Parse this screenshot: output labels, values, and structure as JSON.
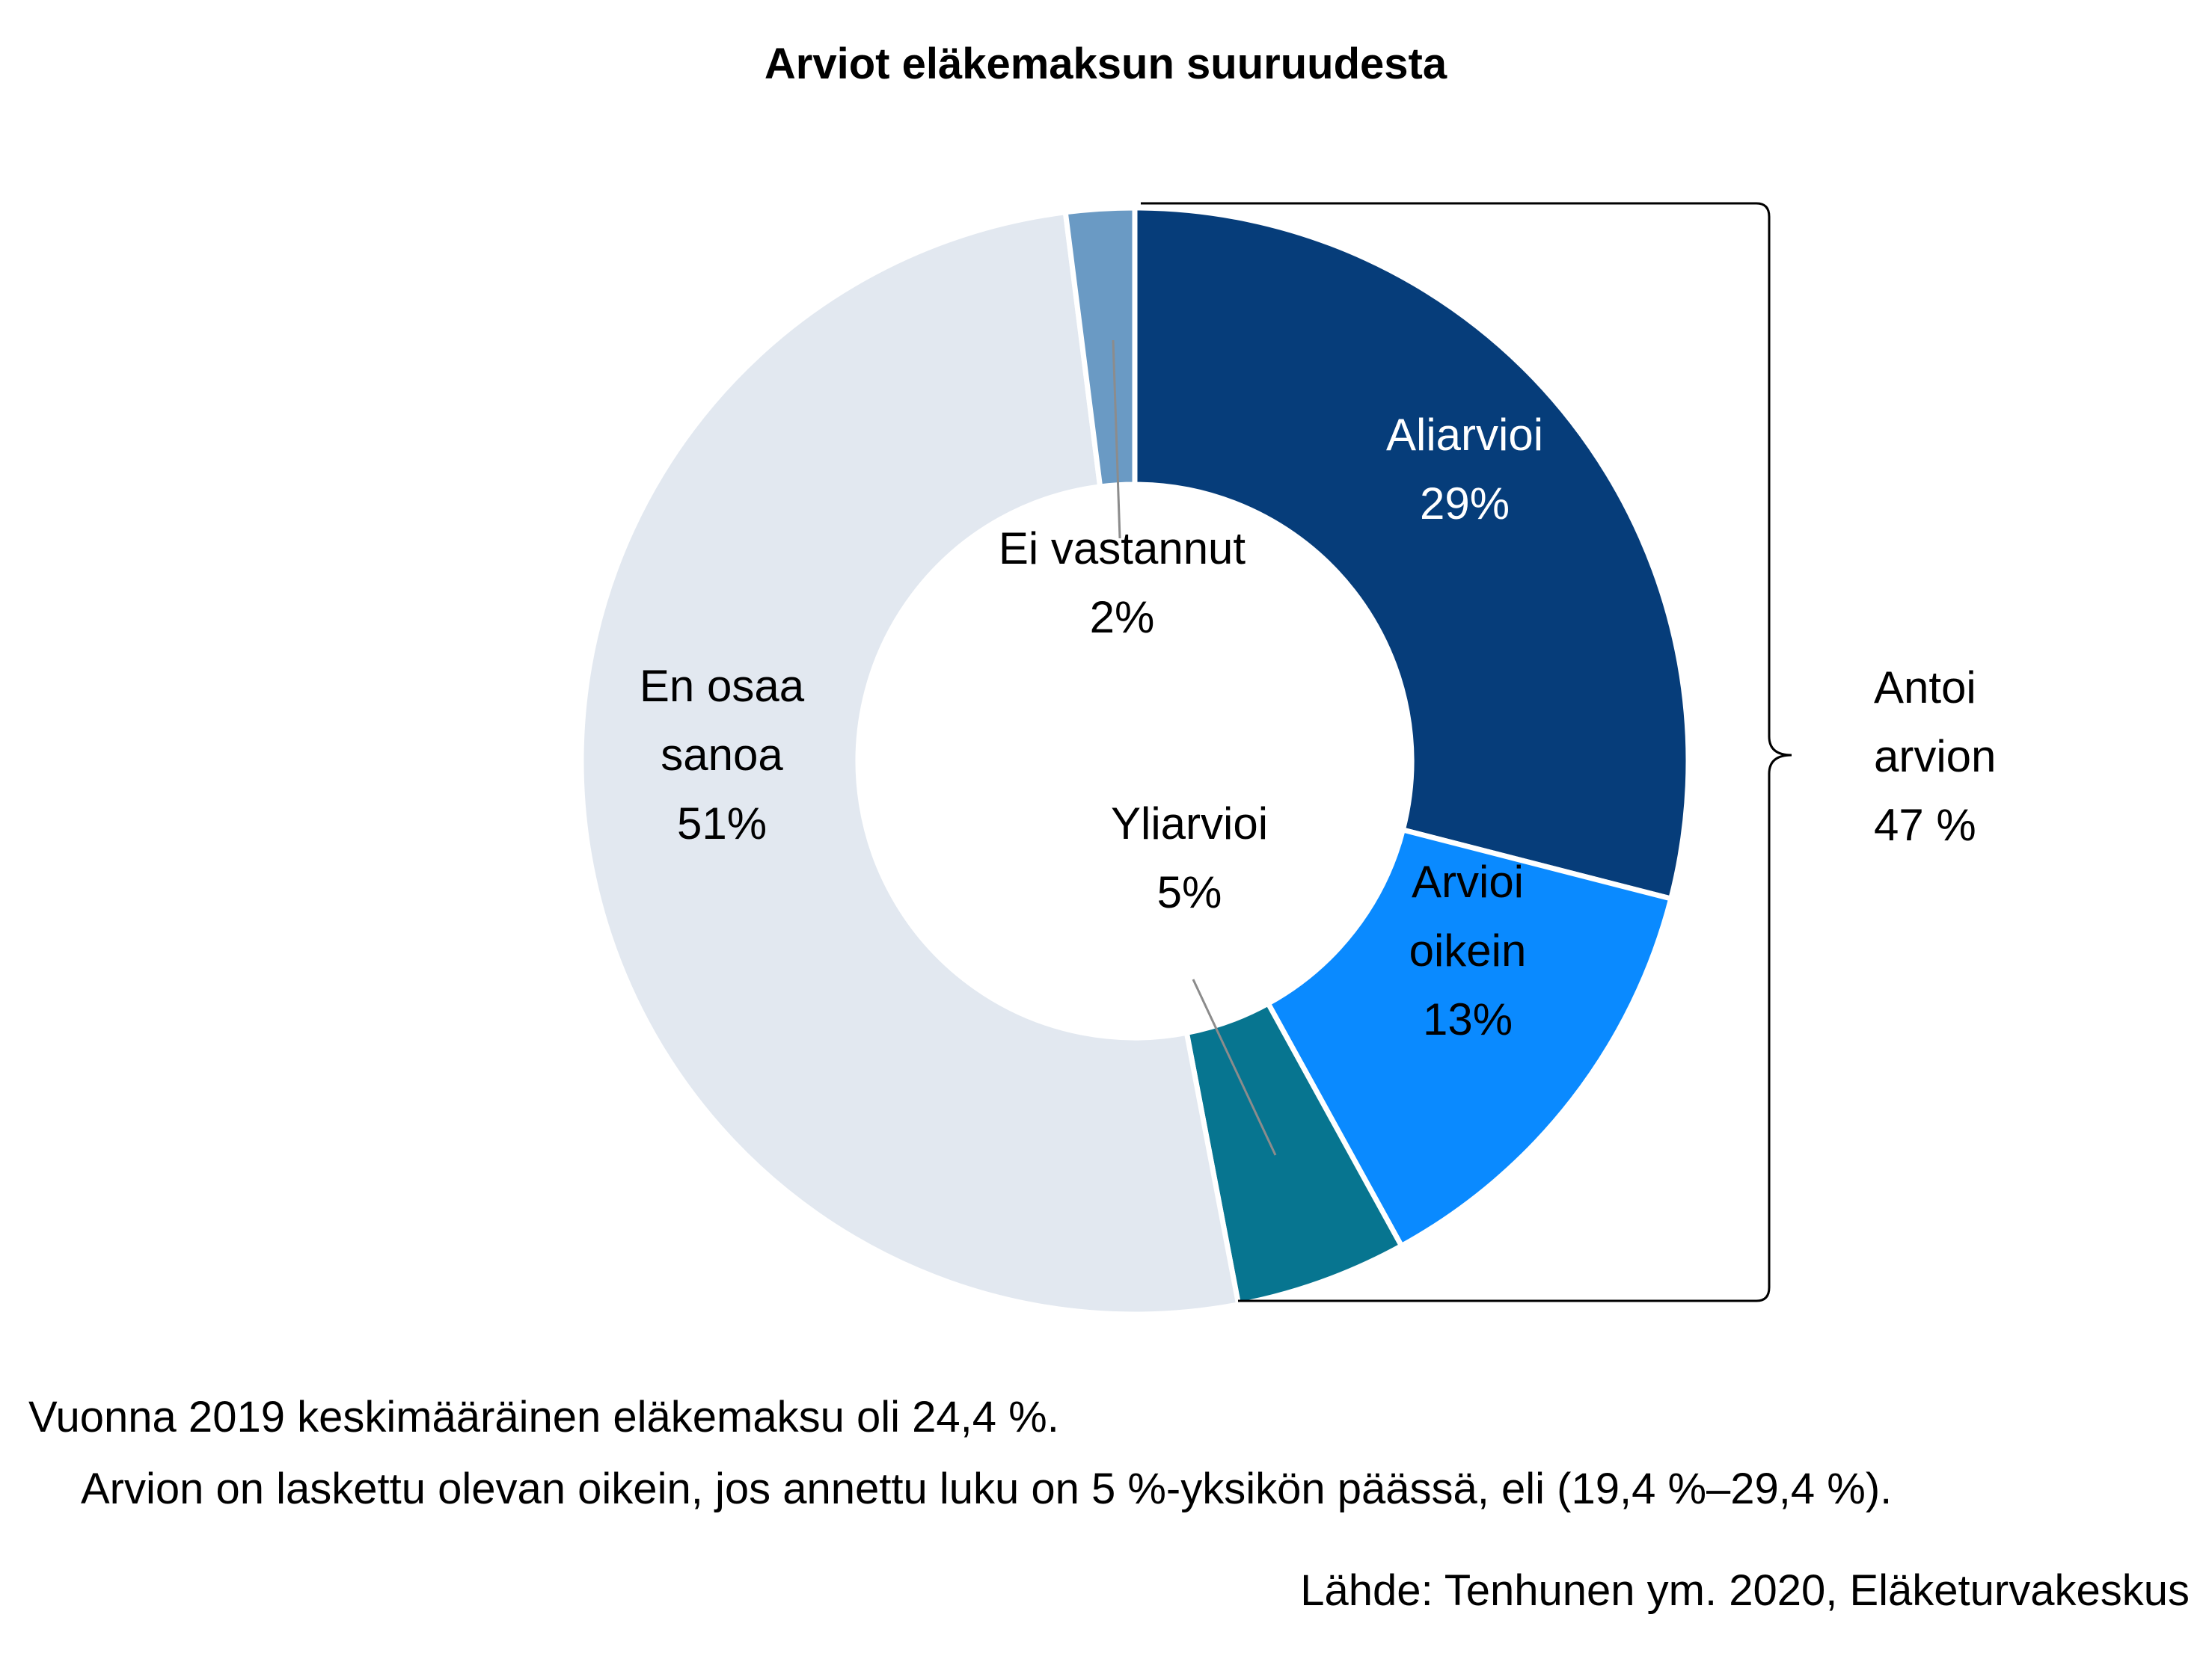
{
  "chart_data": {
    "type": "pie",
    "title": "Arviot eläkemaksun suuruudesta",
    "slices": [
      {
        "label_lines": [
          "Aliarvioi",
          "29%"
        ],
        "value": 29,
        "color": "#063d7a",
        "label_color": "#ffffff"
      },
      {
        "label_lines": [
          "Arvioi",
          "oikein",
          "13%"
        ],
        "value": 13,
        "color": "#0a8aff",
        "label_color": "#000000"
      },
      {
        "label_lines": [
          "Yliarvioi",
          "5%"
        ],
        "value": 5,
        "color": "#077590",
        "label_color": "#000000"
      },
      {
        "label_lines": [
          "En osaa",
          "sanoa",
          "51%"
        ],
        "value": 51,
        "color": "#e2e8f0",
        "label_color": "#000000"
      },
      {
        "label_lines": [
          "Ei vastannut",
          "2%"
        ],
        "value": 2,
        "color": "#6a9ac4",
        "label_color": "#000000"
      }
    ],
    "bracket_label_lines": [
      "Antoi",
      "arvion",
      "47 %"
    ]
  },
  "notes": {
    "line1": "Vuonna 2019 keskimääräinen eläkemaksu oli 24,4 %.",
    "line2": "Arvion on laskettu olevan oikein, jos annettu luku on 5 %-yksikön päässä, eli (19,4 %–29,4 %).",
    "source": "Lähde: Tenhunen ym. 2020, Eläketurvakeskus"
  }
}
